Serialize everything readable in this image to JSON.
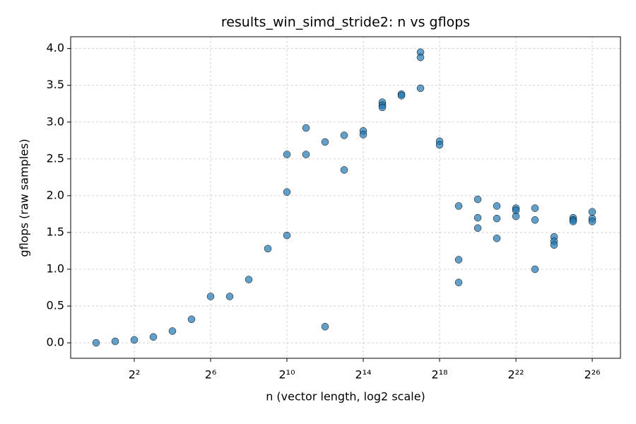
{
  "chart_data": {
    "type": "scatter",
    "title": "results_win_simd_stride2: n vs gflops",
    "xlabel": "n (vector length, log2 scale)",
    "ylabel": "gflops (raw samples)",
    "color": "#1f77b4",
    "xscale": "log2",
    "grid": true,
    "x": [
      1,
      2,
      4,
      8,
      16,
      32,
      64,
      128,
      256,
      512,
      1024,
      1024,
      1024,
      2048,
      2048,
      4096,
      4096,
      8192,
      8192,
      16384,
      16384,
      32768,
      32768,
      32768,
      65536,
      65536,
      131072,
      131072,
      131072,
      262144,
      262144,
      524288,
      524288,
      524288,
      1048576,
      1048576,
      1048576,
      2097152,
      2097152,
      2097152,
      4194304,
      4194304,
      4194304,
      8388608,
      8388608,
      8388608,
      16777216,
      16777216,
      16777216,
      33554432,
      33554432,
      33554432,
      67108864,
      67108864,
      67108864
    ],
    "values": [
      0.0,
      0.02,
      0.04,
      0.08,
      0.16,
      0.32,
      0.63,
      0.63,
      0.86,
      1.28,
      2.56,
      2.05,
      1.46,
      2.92,
      2.56,
      2.73,
      0.22,
      2.82,
      2.35,
      2.88,
      2.83,
      3.27,
      3.23,
      3.2,
      3.38,
      3.36,
      3.95,
      3.88,
      3.46,
      2.74,
      2.69,
      1.86,
      1.13,
      0.82,
      1.95,
      1.7,
      1.56,
      1.86,
      1.69,
      1.42,
      1.83,
      1.8,
      1.72,
      1.83,
      1.67,
      1.0,
      1.44,
      1.38,
      1.33,
      1.7,
      1.67,
      1.65,
      1.78,
      1.69,
      1.65
    ],
    "xlim": [
      0.397,
      187000000
    ],
    "ylim": [
      -0.21,
      4.16
    ],
    "xticks": [
      {
        "value": 4,
        "label": "2²"
      },
      {
        "value": 64,
        "label": "2⁶"
      },
      {
        "value": 1024,
        "label": "2¹⁰"
      },
      {
        "value": 16384,
        "label": "2¹⁴"
      },
      {
        "value": 262144,
        "label": "2¹⁸"
      },
      {
        "value": 4194304,
        "label": "2²²"
      },
      {
        "value": 67108864,
        "label": "2²⁶"
      }
    ],
    "yticks": [
      {
        "value": 0,
        "label": "0.0"
      },
      0.5,
      {
        "value": 1,
        "label": "1.0"
      },
      1.5,
      {
        "value": 2,
        "label": "2.0"
      },
      2.5,
      {
        "value": 3,
        "label": "3.0"
      },
      3.5,
      {
        "value": 4,
        "label": "4.0"
      }
    ]
  }
}
